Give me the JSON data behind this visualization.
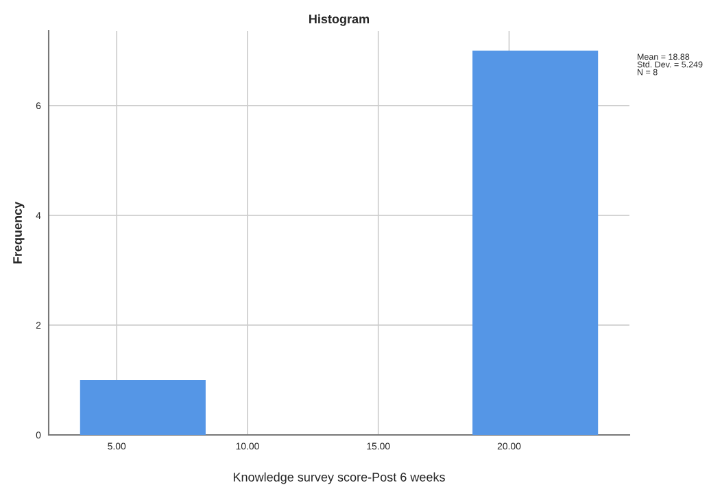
{
  "chart_data": {
    "type": "histogram",
    "title": "Histogram",
    "xlabel": "Knowledge survey score-Post 6 weeks",
    "ylabel": "Frequency",
    "bins": [
      3.6,
      8.4,
      18.6,
      23.4
    ],
    "values": [
      1,
      0,
      7
    ],
    "color": "#5596e6",
    "xlim": [
      2.4,
      24.6
    ],
    "xticks": [
      {
        "value": 5,
        "label": "5.00"
      },
      {
        "value": 10,
        "label": "10.00"
      },
      {
        "value": 15,
        "label": "15.00"
      },
      {
        "value": 20,
        "label": "20.00"
      }
    ],
    "ylim": [
      0,
      7.36
    ],
    "yticks": [
      0,
      2,
      4,
      6
    ],
    "grid": true,
    "annotations": [
      "Mean = 18.88\nStd. Dev. = 5.249\nN = 8"
    ]
  }
}
